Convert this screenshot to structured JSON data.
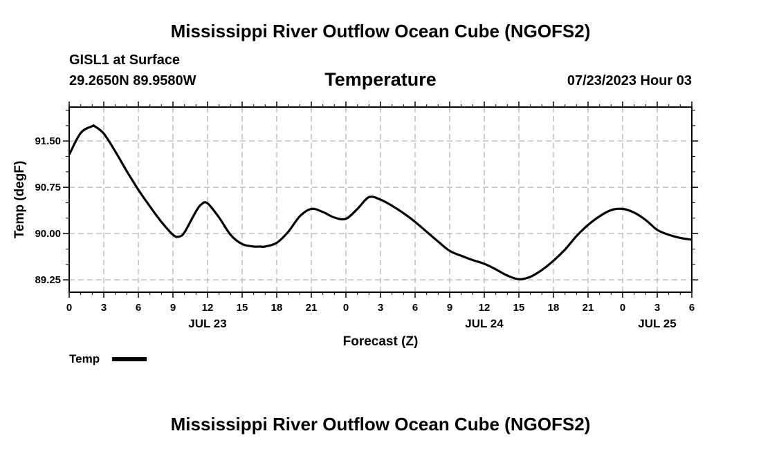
{
  "header": {
    "top_title": "Mississippi River Outflow Ocean Cube (NGOFS2)",
    "station": "GISL1 at Surface",
    "coords": "29.2650N  89.9580W",
    "subtitle": "Temperature",
    "datetime": "07/23/2023 Hour 03",
    "bottom_title": "Mississippi River Outflow Ocean Cube (NGOFS2)"
  },
  "chart_data": {
    "type": "line",
    "title": "Temperature",
    "xlabel": "Forecast (Z)",
    "ylabel": "Temp (degF)",
    "xlim": [
      0,
      54
    ],
    "ylim": [
      89.05,
      92.05
    ],
    "grid": true,
    "x_tick_values": [
      0,
      3,
      6,
      9,
      12,
      15,
      18,
      21,
      24,
      27,
      30,
      33,
      36,
      39,
      42,
      45,
      48,
      51,
      54
    ],
    "x_tick_labels": [
      "0",
      "3",
      "6",
      "9",
      "12",
      "15",
      "18",
      "21",
      "0",
      "3",
      "6",
      "9",
      "12",
      "15",
      "18",
      "21",
      "0",
      "3",
      "6"
    ],
    "date_labels": [
      {
        "x": 12,
        "label": "JUL 23"
      },
      {
        "x": 36,
        "label": "JUL 24"
      },
      {
        "x": 51,
        "label": "JUL 25"
      }
    ],
    "y_ticks": [
      89.25,
      90.0,
      90.75,
      91.5
    ],
    "y_tick_labels": [
      "89.25",
      "90.00",
      "90.75",
      "91.50"
    ],
    "legend": {
      "label": "Temp",
      "placement": "bottom-left"
    },
    "series": [
      {
        "name": "Temp",
        "x": [
          0,
          1,
          2,
          2.2,
          3,
          4,
          5,
          6,
          7,
          8,
          9,
          9.5,
          10,
          11,
          11.5,
          12,
          13,
          14,
          15,
          16,
          16.5,
          17,
          18,
          19,
          20,
          21,
          22,
          23,
          24,
          25,
          26,
          27,
          28,
          29,
          30,
          31,
          32,
          33,
          34,
          35,
          36,
          37,
          38,
          39,
          40,
          41,
          42,
          43,
          44,
          45,
          46,
          47,
          48,
          49,
          50,
          51,
          52,
          53,
          54
        ],
        "values": [
          91.28,
          91.63,
          91.74,
          91.74,
          91.62,
          91.33,
          91.01,
          90.71,
          90.44,
          90.19,
          89.98,
          89.95,
          90.02,
          90.36,
          90.48,
          90.49,
          90.26,
          89.98,
          89.83,
          89.79,
          89.79,
          89.79,
          89.85,
          90.03,
          90.28,
          90.4,
          90.35,
          90.26,
          90.24,
          90.4,
          90.59,
          90.55,
          90.45,
          90.33,
          90.19,
          90.03,
          89.87,
          89.72,
          89.64,
          89.57,
          89.51,
          89.42,
          89.32,
          89.26,
          89.3,
          89.41,
          89.56,
          89.74,
          89.96,
          90.14,
          90.28,
          90.38,
          90.4,
          90.34,
          90.22,
          90.06,
          89.98,
          89.93,
          89.9
        ]
      }
    ]
  }
}
